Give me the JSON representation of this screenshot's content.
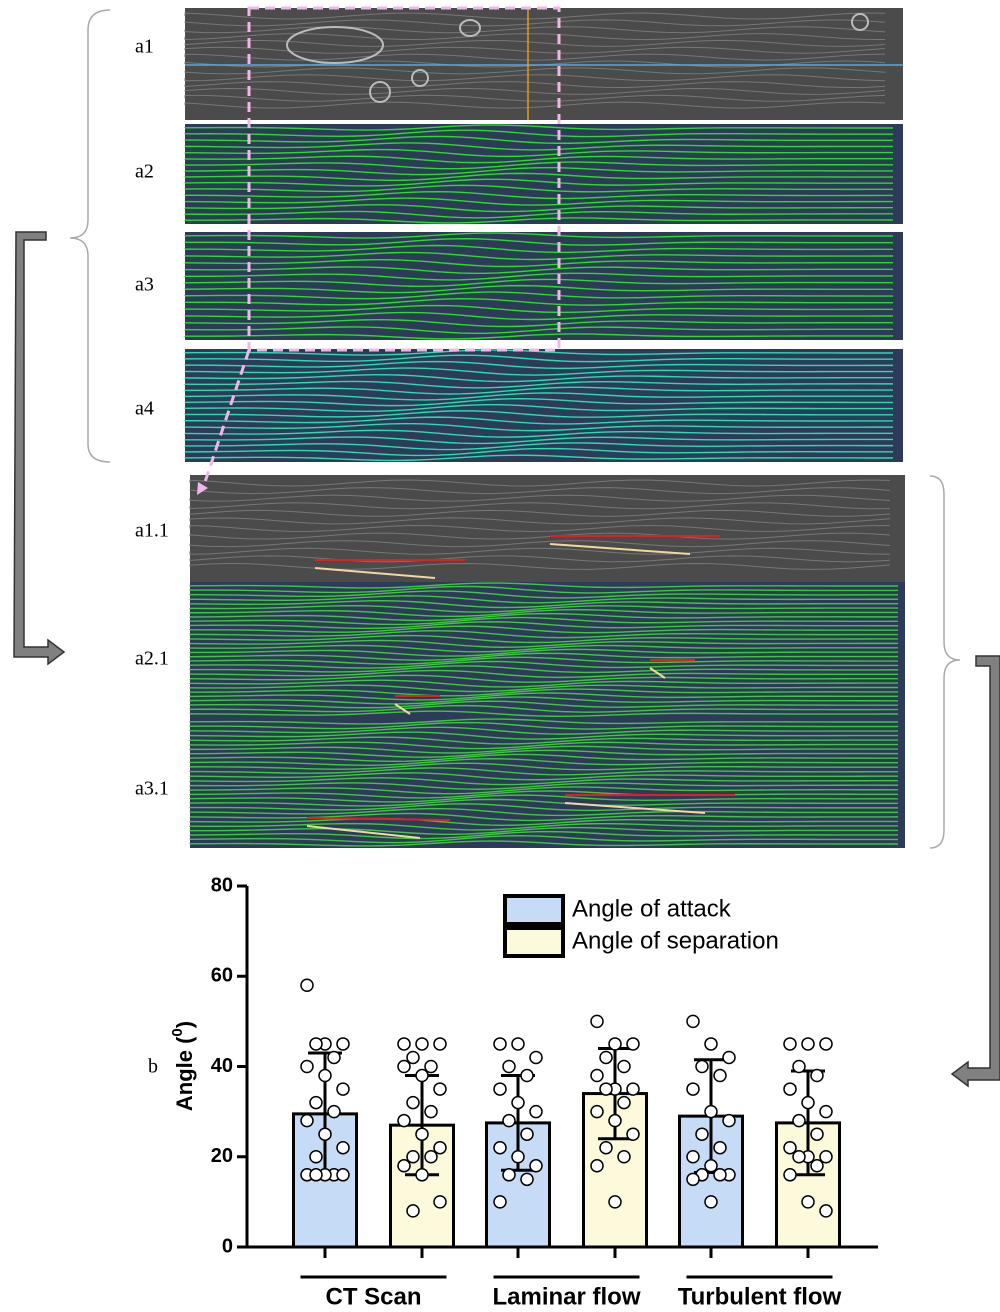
{
  "panels": {
    "a1": "a1",
    "a2": "a2",
    "a3": "a3",
    "a4": "a4",
    "a11": "a1.1",
    "a21": "a2.1",
    "a31": "a3.1",
    "b": "b"
  },
  "chart_data": {
    "type": "bar",
    "categories": [
      "CT Scan",
      "Laminar flow",
      "Turbulent flow"
    ],
    "ylabel": "Angle (",
    "ylabel_sup": "0",
    "ylabel_end": ")",
    "ylim": [
      0,
      80
    ],
    "yticks": [
      0,
      20,
      40,
      60,
      80
    ],
    "grid": false,
    "legend": "top-right",
    "series": [
      {
        "name": "Angle of attack",
        "color": "#c6dbf5",
        "values": [
          29.5,
          27.5,
          29
        ],
        "errors": [
          13.5,
          10.5,
          12.5
        ],
        "points": [
          [
            58,
            45,
            45,
            45,
            42,
            40,
            38,
            35,
            32,
            30,
            28,
            25,
            22,
            20,
            16,
            16,
            16,
            16,
            16
          ],
          [
            45,
            45,
            42,
            40,
            38,
            35,
            32,
            30,
            28,
            25,
            22,
            20,
            18,
            16,
            15,
            10
          ],
          [
            50,
            45,
            42,
            40,
            38,
            35,
            30,
            28,
            25,
            22,
            20,
            18,
            16,
            16,
            16,
            15,
            10
          ]
        ]
      },
      {
        "name": "Angle of separation",
        "color": "#fdfadc",
        "values": [
          27,
          34,
          27.5
        ],
        "errors": [
          11,
          10,
          11.5
        ],
        "points": [
          [
            45,
            45,
            45,
            42,
            40,
            40,
            38,
            35,
            32,
            30,
            28,
            25,
            22,
            20,
            20,
            18,
            16,
            10,
            8
          ],
          [
            50,
            45,
            45,
            42,
            40,
            38,
            35,
            35,
            35,
            32,
            30,
            28,
            25,
            22,
            20,
            18,
            10
          ],
          [
            45,
            45,
            45,
            40,
            38,
            35,
            32,
            30,
            28,
            25,
            22,
            20,
            20,
            20,
            18,
            16,
            10,
            8
          ]
        ]
      }
    ]
  }
}
